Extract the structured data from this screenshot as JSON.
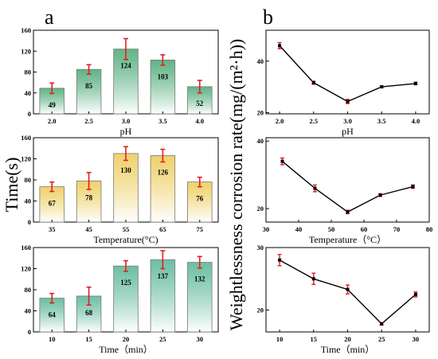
{
  "panel_labels": {
    "a": "a",
    "b": "b"
  },
  "ylabel_a": "Time(s)",
  "ylabel_b": "Weightlessness corrosion rate(mg/(m²·h))",
  "colors": {
    "ph": "#2e9b5f",
    "temp": "#e9c33c",
    "time": "#3daa86",
    "error": "#e02020",
    "line": "#000000"
  },
  "chart_data": [
    {
      "type": "bar",
      "panel": "a",
      "xlabel": "pH",
      "categories": [
        "2.0",
        "2.5",
        "3.0",
        "3.5",
        "4.0"
      ],
      "values": [
        49,
        85,
        124,
        103,
        52
      ],
      "errors": [
        10,
        9,
        20,
        10,
        12
      ],
      "ylim": [
        0,
        160
      ],
      "yticks": [
        0,
        40,
        80,
        120,
        160
      ],
      "color_key": "ph"
    },
    {
      "type": "bar",
      "panel": "a",
      "xlabel": "Temperature(°C)",
      "categories": [
        "35",
        "45",
        "55",
        "65",
        "75"
      ],
      "values": [
        67,
        78,
        130,
        126,
        76
      ],
      "errors": [
        9,
        16,
        13,
        12,
        9
      ],
      "ylim": [
        0,
        160
      ],
      "yticks": [
        0,
        40,
        80,
        120,
        160
      ],
      "color_key": "temp"
    },
    {
      "type": "bar",
      "panel": "a",
      "xlabel": "Time（min）",
      "categories": [
        "10",
        "15",
        "20",
        "25",
        "30"
      ],
      "values": [
        64,
        68,
        125,
        137,
        132
      ],
      "errors": [
        9,
        17,
        10,
        17,
        11
      ],
      "ylim": [
        0,
        160
      ],
      "yticks": [
        0,
        40,
        80,
        120,
        160
      ],
      "color_key": "time"
    },
    {
      "type": "line",
      "panel": "b",
      "xlabel": "pH",
      "x": [
        2.0,
        2.5,
        3.0,
        3.5,
        4.0
      ],
      "y": [
        46,
        31.6,
        24.3,
        30,
        31.3
      ],
      "errors": [
        1.2,
        0.6,
        0.8,
        0.3,
        0.5
      ],
      "xlim": [
        1.8,
        4.2
      ],
      "xticks": [
        "2.0",
        "2.5",
        "3.0",
        "3.5",
        "4.0"
      ],
      "ylim": [
        19.5,
        52
      ],
      "yticks": [
        20,
        40
      ]
    },
    {
      "type": "line",
      "panel": "b",
      "xlabel": "Temperature（°C）",
      "x": [
        35,
        45,
        55,
        65,
        75
      ],
      "y": [
        34,
        26,
        19,
        24,
        26.5
      ],
      "errors": [
        1,
        1,
        0.5,
        0.4,
        0.5
      ],
      "xlim": [
        30,
        80
      ],
      "xticks": [
        "30",
        "40",
        "50",
        "60",
        "70",
        "80"
      ],
      "ylim": [
        16,
        41
      ],
      "yticks": [
        20,
        40
      ]
    },
    {
      "type": "line",
      "panel": "b",
      "xlabel": "Time（min）",
      "x": [
        10,
        15,
        20,
        25,
        30
      ],
      "y": [
        28,
        25,
        23.3,
        17.8,
        22.5
      ],
      "errors": [
        0.9,
        0.9,
        0.7,
        0.2,
        0.4
      ],
      "xlim": [
        8,
        32
      ],
      "xticks": [
        "10",
        "15",
        "20",
        "25",
        "30"
      ],
      "ylim": [
        16.5,
        30
      ],
      "yticks": [
        20,
        30
      ]
    }
  ]
}
